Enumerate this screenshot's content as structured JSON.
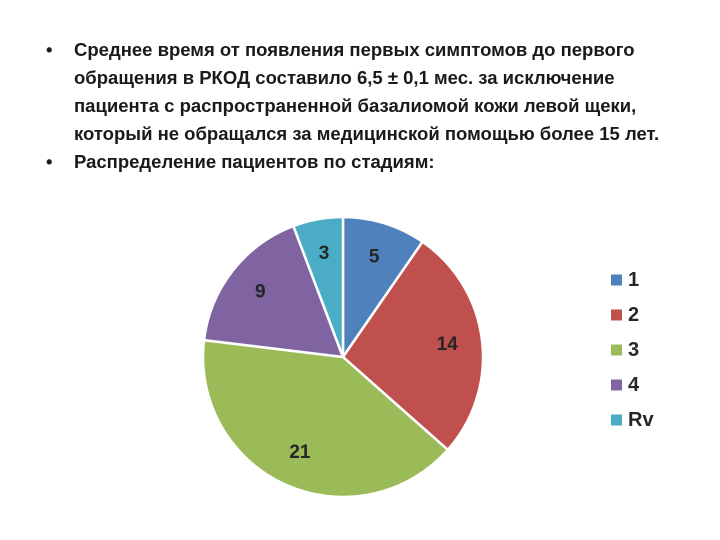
{
  "slide": {
    "bullets": [
      {
        "symbol": "•",
        "text": "Среднее время от появления первых симптомов до первого обращения в РКОД составило 6,5 ± 0,1 мес. за исключение пациента с распространенной базалиомой кожи левой щеки, который не обращался за медицинской помощью более 15 лет."
      },
      {
        "symbol": "•",
        "text": "Распределение пациентов по стадиям:"
      }
    ]
  },
  "chart_data": {
    "type": "pie",
    "title": "",
    "categories": [
      "1",
      "2",
      "3",
      "4",
      "Rv"
    ],
    "values": [
      5,
      14,
      21,
      9,
      3
    ],
    "data_labels": [
      "5",
      "14",
      "21",
      "9",
      "3"
    ],
    "colors": [
      "#4F81BD",
      "#C0504D",
      "#9BBB59",
      "#8064A2",
      "#4BACC6"
    ],
    "legend_position": "right",
    "start_angle_deg": 0,
    "direction": "clockwise",
    "slice_border_color": "#ffffff"
  }
}
